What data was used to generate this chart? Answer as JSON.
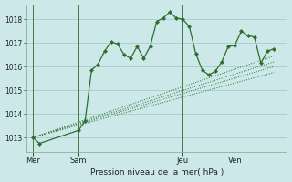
{
  "background_color": "#cce8e8",
  "grid_color": "#aacccc",
  "line_color": "#2d6e2d",
  "title": "Pression niveau de la mer( hPa )",
  "ylim": [
    1012.4,
    1018.6
  ],
  "yticks": [
    1013,
    1014,
    1015,
    1016,
    1017,
    1018
  ],
  "xlim": [
    0,
    40
  ],
  "day_labels": [
    "Mer",
    "Sam",
    "Jeu",
    "Ven"
  ],
  "day_positions": [
    1,
    8,
    24,
    32
  ],
  "vline_positions": [
    1,
    8,
    24,
    32
  ],
  "series1_x": [
    1,
    2,
    8,
    9,
    10,
    11,
    12,
    13,
    14,
    15,
    16,
    17,
    18,
    19,
    20,
    21,
    22,
    23,
    24,
    25,
    26,
    27,
    28,
    29,
    30,
    31,
    32,
    33,
    34,
    35,
    36,
    37,
    38
  ],
  "series1_y": [
    1013.0,
    1012.75,
    1013.3,
    1013.7,
    1015.85,
    1016.1,
    1016.65,
    1017.05,
    1016.95,
    1016.5,
    1016.35,
    1016.85,
    1016.35,
    1016.85,
    1017.9,
    1018.05,
    1018.3,
    1018.05,
    1018.0,
    1017.7,
    1016.55,
    1015.85,
    1015.65,
    1015.8,
    1016.2,
    1016.85,
    1016.9,
    1017.5,
    1017.3,
    1017.25,
    1016.15,
    1016.65,
    1016.75
  ],
  "series2_x": [
    1,
    38
  ],
  "series2_y": [
    1013.0,
    1016.45
  ],
  "series3_x": [
    1,
    38
  ],
  "series3_y": [
    1013.0,
    1016.2
  ],
  "series4_x": [
    1,
    38
  ],
  "series4_y": [
    1013.0,
    1016.0
  ],
  "series5_x": [
    1,
    38
  ],
  "series5_y": [
    1013.0,
    1015.75
  ]
}
